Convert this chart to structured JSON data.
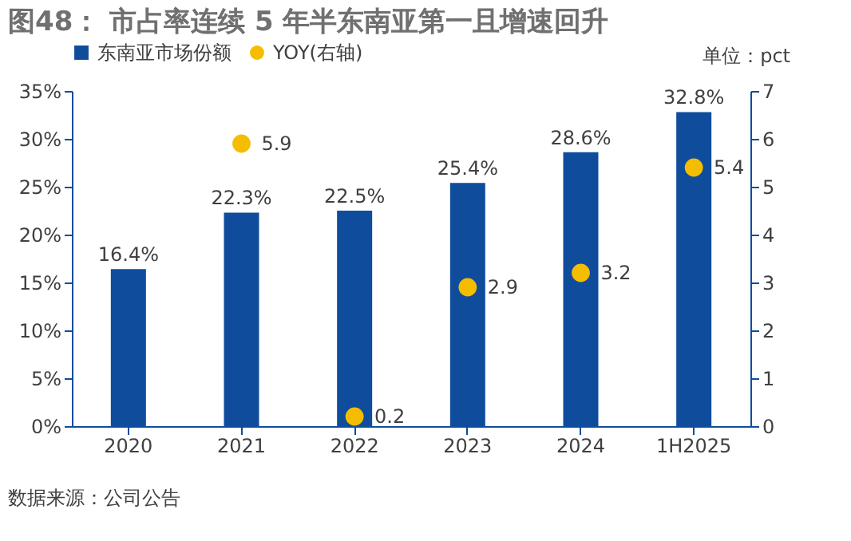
{
  "chart_data": {
    "type": "bar",
    "title": "图48：  市占率连续 5 年半东南亚第一且增速回升",
    "categories": [
      "2020",
      "2021",
      "2022",
      "2023",
      "2024",
      "1H2025"
    ],
    "series": [
      {
        "name": "东南亚市场份额",
        "color": "#0f4c9c",
        "values": [
          16.4,
          22.3,
          22.5,
          25.4,
          28.6,
          32.8
        ],
        "value_labels": [
          "16.4%",
          "22.3%",
          "22.5%",
          "25.4%",
          "28.6%",
          "32.8%"
        ]
      },
      {
        "name": "YOY(右轴)",
        "type": "scatter",
        "axis": "y2",
        "color": "#f5bd00",
        "values": [
          null,
          5.9,
          0.2,
          2.9,
          3.2,
          5.4
        ],
        "value_labels": [
          null,
          "5.9",
          "0.2",
          "2.9",
          "3.2",
          "5.4"
        ]
      }
    ],
    "ylim": [
      0,
      35
    ],
    "yticks": [
      {
        "value": 0,
        "label": "0%"
      },
      {
        "value": 5,
        "label": "5%"
      },
      {
        "value": 10,
        "label": "10%"
      },
      {
        "value": 15,
        "label": "15%"
      },
      {
        "value": 20,
        "label": "20%"
      },
      {
        "value": 25,
        "label": "25%"
      },
      {
        "value": 30,
        "label": "30%"
      },
      {
        "value": 35,
        "label": "35%"
      }
    ],
    "y2lim": [
      0,
      7
    ],
    "y2ticks": [
      0,
      1,
      2,
      3,
      4,
      5,
      6,
      7
    ],
    "y2label": "单位：pct",
    "legend": "top",
    "grid": false,
    "marker": "circle",
    "annotations": [
      "数据来源：公司公告"
    ]
  }
}
